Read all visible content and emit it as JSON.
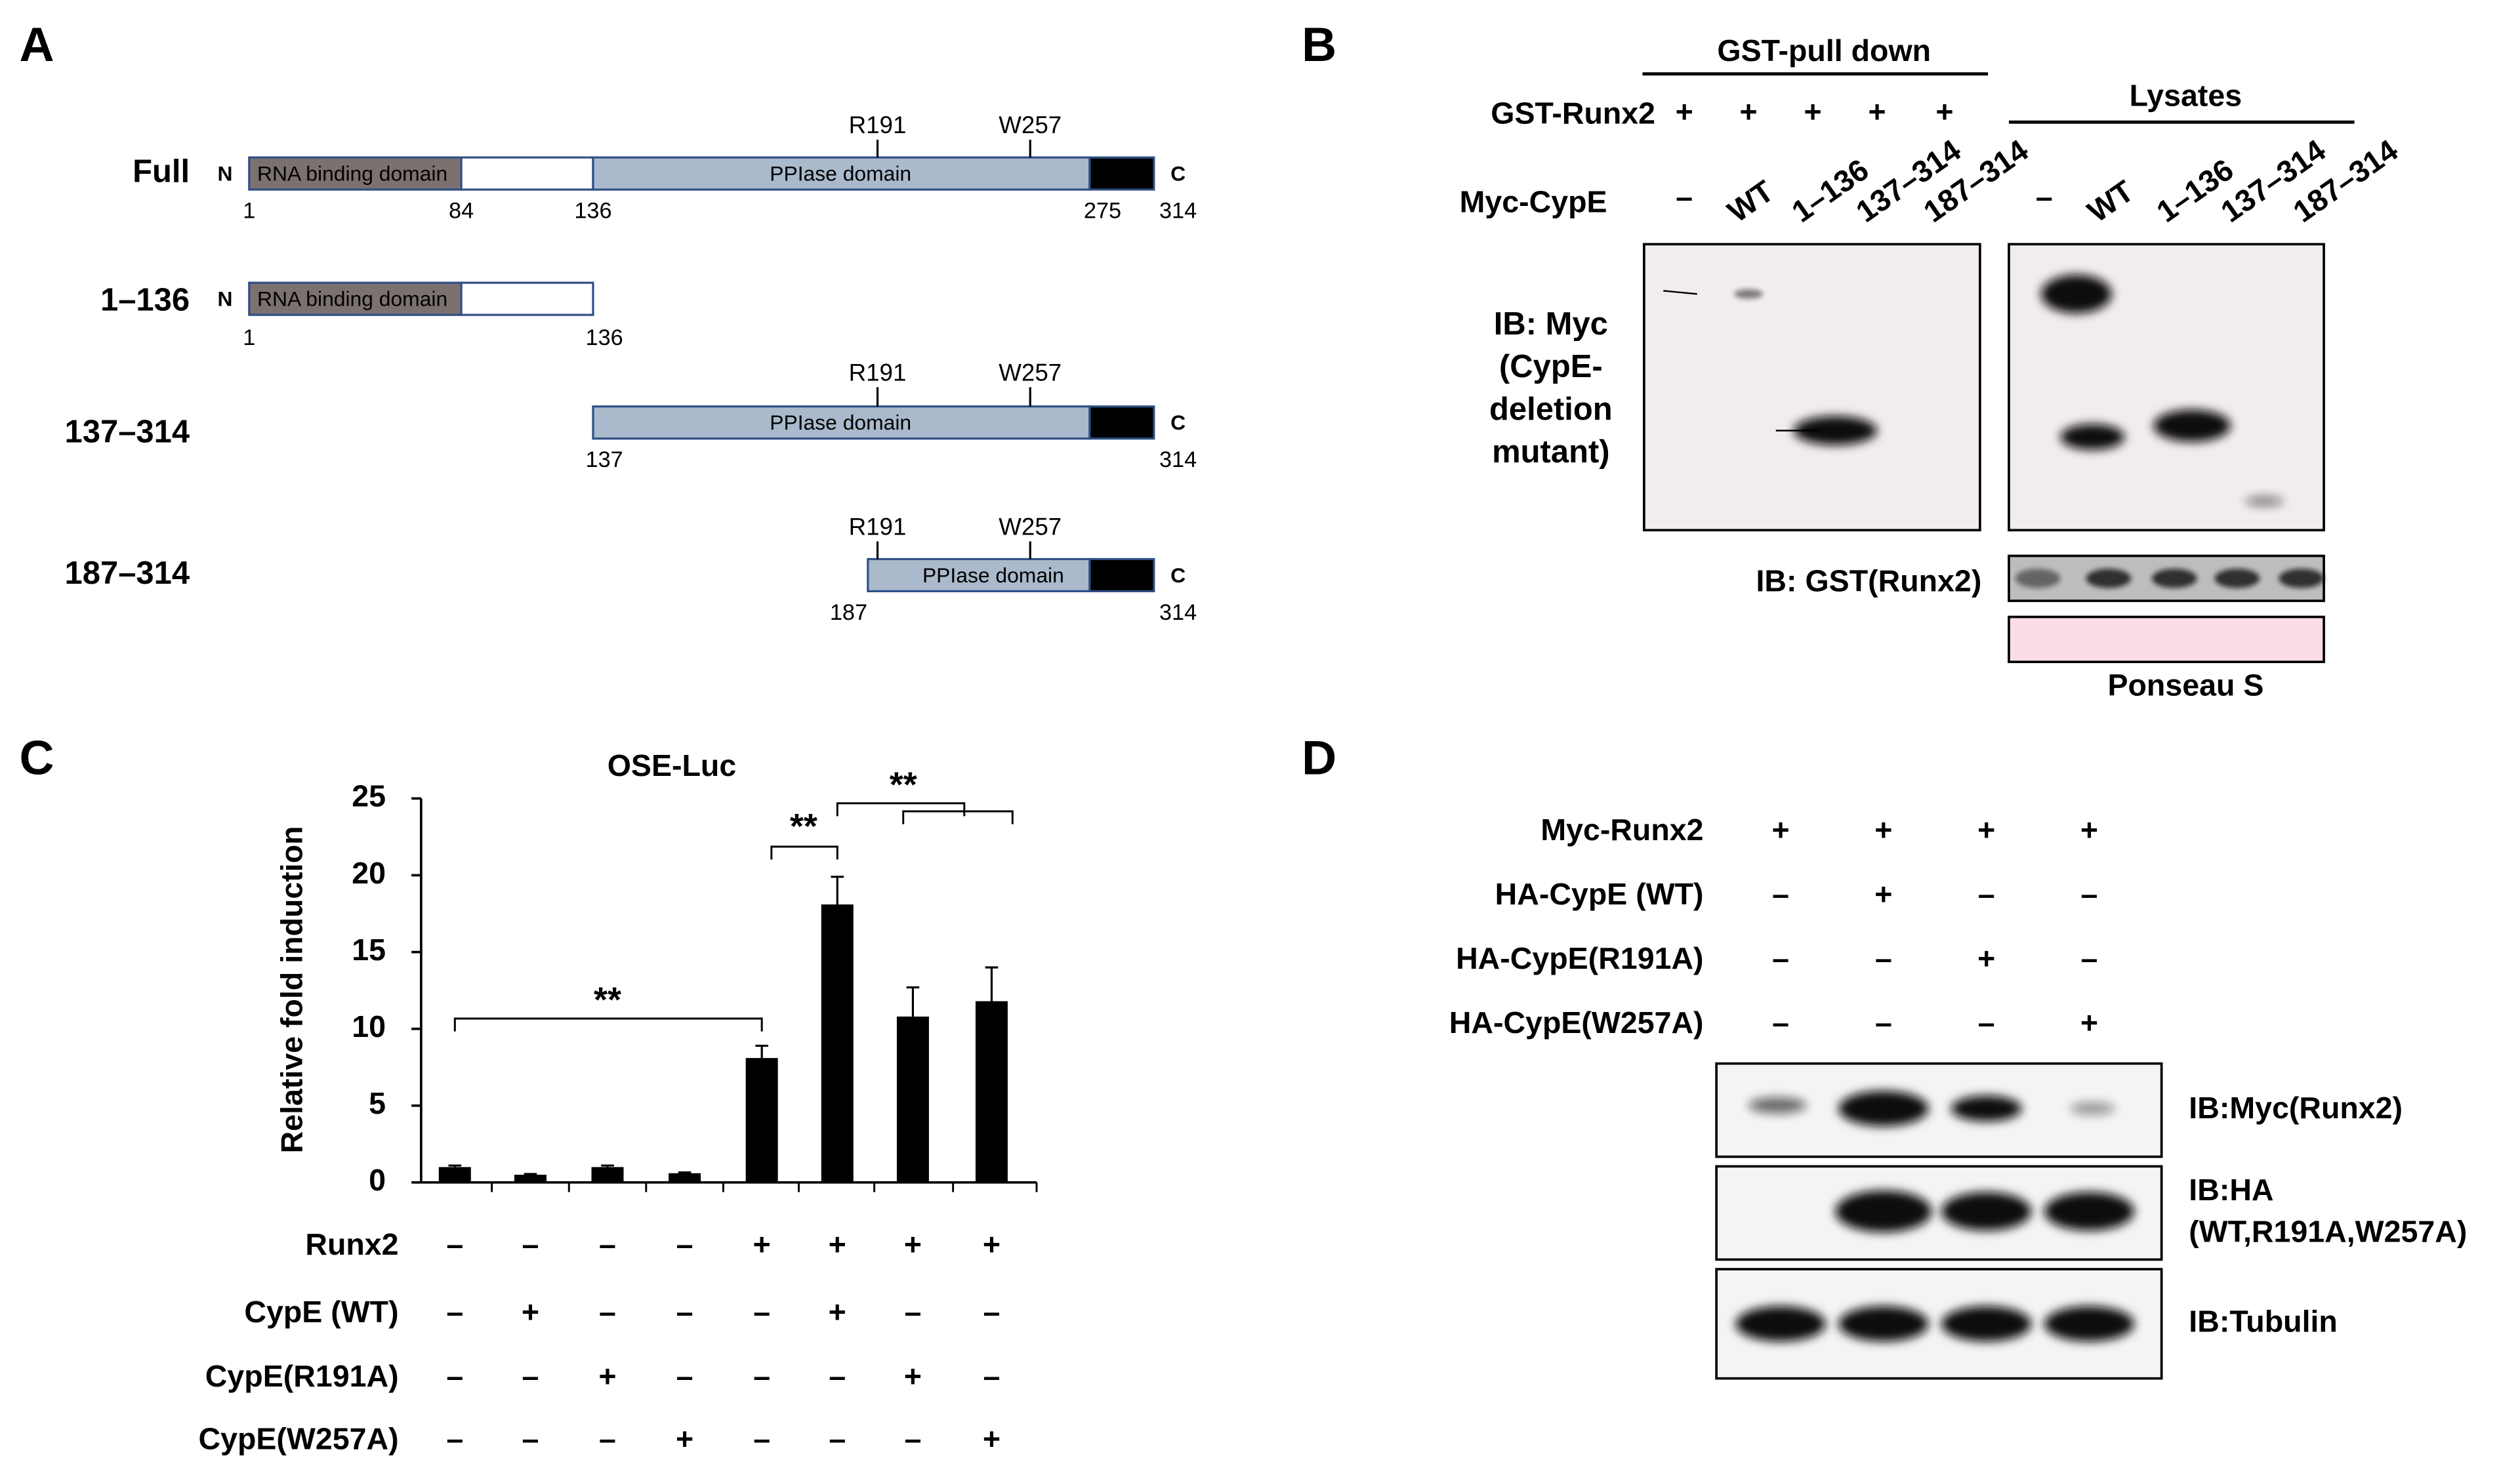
{
  "panel_a": {
    "label": "A",
    "constructs": [
      {
        "name": "Full",
        "n_term": "N",
        "c_term": "C",
        "domains": [
          "RNA binding domain",
          "PPIase domain"
        ],
        "sites": [
          "R191",
          "W257"
        ],
        "residues": [
          1,
          84,
          136,
          275,
          314
        ]
      },
      {
        "name": "1–136",
        "n_term": "N",
        "domains": [
          "RNA binding domain"
        ],
        "residues": [
          1,
          136
        ]
      },
      {
        "name": "137–314",
        "c_term": "C",
        "domains": [
          "PPIase domain"
        ],
        "sites": [
          "R191",
          "W257"
        ],
        "residues": [
          137,
          314
        ]
      },
      {
        "name": "187–314",
        "c_term": "C",
        "domains": [
          "PPIase domain"
        ],
        "sites": [
          "R191",
          "W257"
        ],
        "residues": [
          187,
          314
        ]
      }
    ]
  },
  "panel_b": {
    "label": "B",
    "pulldown_header": "GST-pull down",
    "lysates_header": "Lysates",
    "row_labels": [
      "GST-Runx2",
      "Myc-CypE"
    ],
    "gst_runx2": [
      "+",
      "+",
      "+",
      "+",
      "+"
    ],
    "lanes": [
      "–",
      "WT",
      "1–136",
      "137–314",
      "187–314"
    ],
    "blot_myc": {
      "lines": [
        "IB: Myc",
        "(CypE-",
        "deletion",
        "mutant)"
      ]
    },
    "blot_gst": "IB: GST(Runx2)",
    "stain": "Ponseau S"
  },
  "chart_data": {
    "type": "bar",
    "label": "C",
    "title": "OSE-Luc",
    "y_label": "Relative fold induction",
    "values": [
      1.0,
      0.5,
      1.0,
      0.6,
      8.1,
      18.1,
      10.8,
      11.8
    ],
    "errors": [
      0.1,
      0.05,
      0.1,
      0.05,
      0.8,
      1.8,
      1.9,
      2.2
    ],
    "color": "#000000",
    "ylim": [
      0,
      25
    ],
    "yticks": [
      0,
      5,
      10,
      15,
      20,
      25
    ],
    "conditions": [
      {
        "name": "Runx2",
        "signs": [
          "–",
          "–",
          "–",
          "–",
          "+",
          "+",
          "+",
          "+"
        ]
      },
      {
        "name": "CypE (WT)",
        "signs": [
          "–",
          "+",
          "–",
          "–",
          "–",
          "+",
          "–",
          "–"
        ]
      },
      {
        "name": "CypE(R191A)",
        "signs": [
          "–",
          "–",
          "+",
          "–",
          "–",
          "–",
          "+",
          "–"
        ]
      },
      {
        "name": "CypE(W257A)",
        "signs": [
          "–",
          "–",
          "–",
          "+",
          "–",
          "–",
          "–",
          "+"
        ]
      }
    ],
    "annotations": [
      "**",
      "**",
      "**"
    ]
  },
  "panel_d": {
    "label": "D",
    "rows": [
      {
        "name": "Myc-Runx2",
        "signs": [
          "+",
          "+",
          "+",
          "+"
        ]
      },
      {
        "name": "HA-CypE (WT)",
        "signs": [
          "–",
          "+",
          "–",
          "–"
        ]
      },
      {
        "name": "HA-CypE(R191A)",
        "signs": [
          "–",
          "–",
          "+",
          "–"
        ]
      },
      {
        "name": "HA-CypE(W257A)",
        "signs": [
          "–",
          "–",
          "–",
          "+"
        ]
      }
    ],
    "blots": [
      {
        "lines": [
          "IB:Myc(Runx2)"
        ]
      },
      {
        "lines": [
          "IB:HA",
          "(WT,R191A,W257A)"
        ]
      },
      {
        "lines": [
          "IB:Tubulin"
        ]
      }
    ]
  }
}
